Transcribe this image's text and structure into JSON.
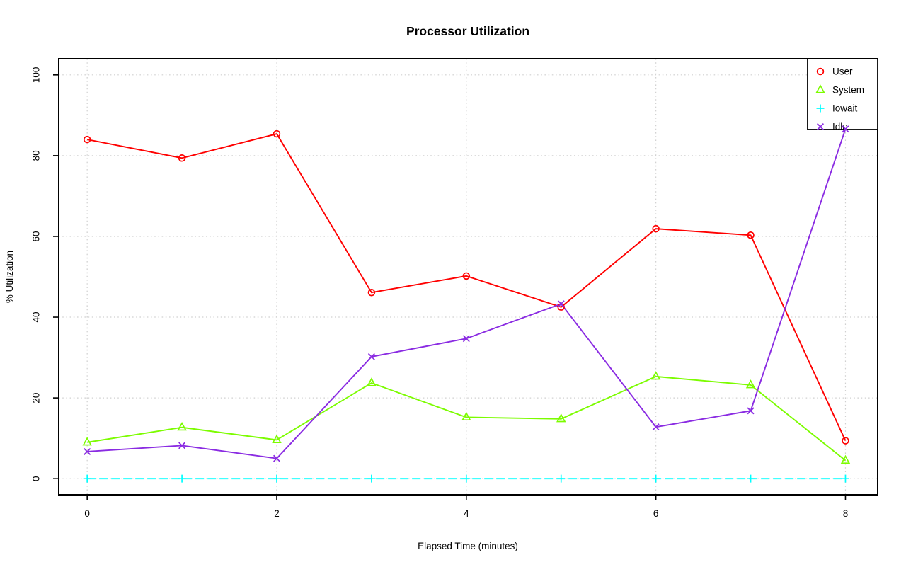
{
  "chart_data": {
    "type": "line",
    "title": "Processor Utilization",
    "xlabel": "Elapsed Time (minutes)",
    "ylabel": "% Utilization",
    "x": [
      0,
      1,
      2,
      3,
      4,
      5,
      6,
      7,
      8
    ],
    "xticks": [
      0,
      2,
      4,
      6,
      8
    ],
    "yticks": [
      0,
      20,
      40,
      60,
      80,
      100
    ],
    "xlim": [
      -0.3,
      8.34
    ],
    "ylim": [
      -4,
      104
    ],
    "grid": true,
    "grid_color": "#d0d0d0",
    "legend_position": "top-right",
    "series": [
      {
        "name": "User",
        "color": "#ff0000",
        "marker": "circle",
        "line": "solid",
        "values": [
          84.0,
          79.4,
          85.4,
          46.1,
          50.2,
          42.5,
          61.9,
          60.3,
          9.4
        ]
      },
      {
        "name": "System",
        "color": "#7cfc00",
        "marker": "triangle",
        "line": "solid",
        "values": [
          9.0,
          12.7,
          9.6,
          23.7,
          15.2,
          14.8,
          25.3,
          23.2,
          4.5
        ]
      },
      {
        "name": "Iowait",
        "color": "#00ffff",
        "marker": "plus",
        "line": "dashed",
        "values": [
          0,
          0,
          0,
          0,
          0,
          0,
          0,
          0,
          0
        ]
      },
      {
        "name": "Idle",
        "color": "#8a2be2",
        "marker": "x",
        "line": "solid",
        "values": [
          6.7,
          8.2,
          5.0,
          30.2,
          34.7,
          43.3,
          12.8,
          16.8,
          86.6
        ]
      }
    ]
  }
}
